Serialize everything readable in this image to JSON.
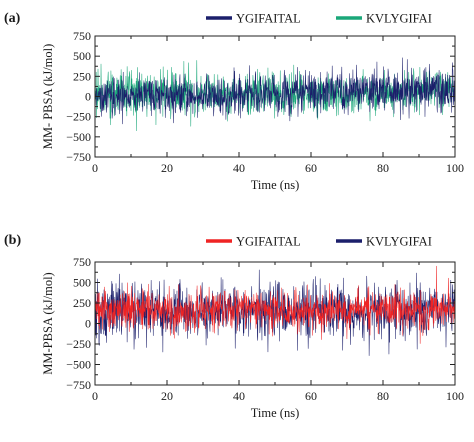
{
  "chart_data": [
    {
      "type": "line",
      "panel_label": "(a)",
      "xlabel": "Time (ns)",
      "ylabel": "MM- PBSA (kJ/mol)",
      "xlim": [
        0,
        100
      ],
      "ylim": [
        -750,
        750
      ],
      "xticks": [
        0,
        20,
        40,
        60,
        80,
        100
      ],
      "yticks": [
        -750,
        -500,
        -250,
        0,
        250,
        500,
        750
      ],
      "grid": false,
      "legend_position": "top-right, outside plot",
      "series": [
        {
          "name": "KVLYGIFAI",
          "color": "#1aa779",
          "draw_order": 1,
          "envelope": {
            "x": [
              0,
              20,
              40,
              60,
              80,
              100
            ],
            "mean": [
              60,
              40,
              30,
              30,
              50,
              70
            ],
            "amplitude": [
              150,
              140,
              130,
              125,
              115,
              110
            ]
          },
          "range": [
            -600,
            560
          ],
          "samples": 1200
        },
        {
          "name": "YGIFAITAL",
          "color": "#1b1f6b",
          "draw_order": 2,
          "envelope": {
            "x": [
              0,
              20,
              40,
              60,
              80,
              100
            ],
            "mean": [
              10,
              0,
              20,
              50,
              70,
              90
            ],
            "amplitude": [
              105,
              120,
              125,
              135,
              140,
              145
            ]
          },
          "range": [
            -420,
            480
          ],
          "samples": 1200
        }
      ],
      "legend_order": [
        "YGIFAITAL",
        "KVLYGIFAI"
      ]
    },
    {
      "type": "line",
      "panel_label": "(b)",
      "xlabel": "Time (ns)",
      "ylabel": "MM-PBSA (kJ/mol)",
      "xlim": [
        0,
        100
      ],
      "ylim": [
        -750,
        750
      ],
      "xticks": [
        0,
        20,
        40,
        60,
        80,
        100
      ],
      "yticks": [
        -750,
        -500,
        -250,
        0,
        250,
        500,
        750
      ],
      "grid": false,
      "legend_position": "top-right, outside plot",
      "series": [
        {
          "name": "KVLYGIFAI",
          "color": "#1b1f6b",
          "draw_order": 1,
          "envelope": {
            "x": [
              0,
              20,
              40,
              60,
              80,
              100
            ],
            "mean": [
              150,
              160,
              150,
              140,
              150,
              160
            ],
            "amplitude": [
              165,
              165,
              170,
              170,
              165,
              165
            ]
          },
          "range": [
            -620,
            680
          ],
          "samples": 1200
        },
        {
          "name": "YGIFAITAL",
          "color": "#ef2424",
          "draw_order": 2,
          "envelope": {
            "x": [
              0,
              20,
              40,
              60,
              80,
              100
            ],
            "mean": [
              170,
              170,
              180,
              170,
              170,
              175
            ],
            "amplitude": [
              120,
              125,
              130,
              125,
              120,
              120
            ]
          },
          "range": [
            -300,
            700
          ],
          "samples": 1200
        }
      ],
      "legend_order": [
        "YGIFAITAL",
        "KVLYGIFAI"
      ]
    }
  ]
}
